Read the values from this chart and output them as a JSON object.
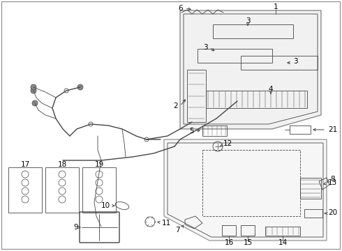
{
  "background_color": "#ffffff",
  "figsize": [
    4.9,
    3.6
  ],
  "dpi": 100,
  "line_color": "#444444",
  "label_fontsize": 7.5,
  "border_color": "#999999"
}
